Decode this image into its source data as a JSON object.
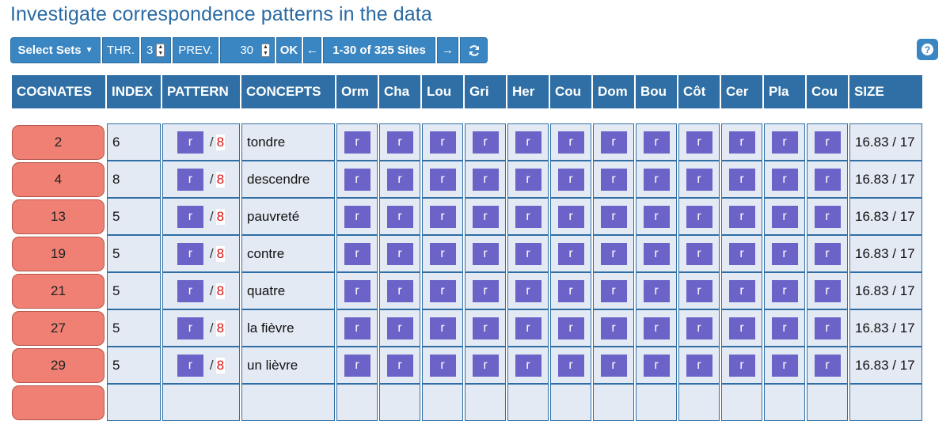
{
  "page": {
    "title": "Investigate correspondence patterns in the data"
  },
  "toolbar": {
    "select_sets": "Select Sets",
    "thr_label": "THR.",
    "thr_value": "3",
    "prev_label": "PREV.",
    "prev_value": "30",
    "ok": "OK",
    "back": "←",
    "range": "1-30 of 325 Sites",
    "forward": "→",
    "refresh_icon": "refresh-icon",
    "help": "?"
  },
  "table": {
    "headers": [
      "COGNATES",
      "INDEX",
      "PATTERN",
      "CONCEPTS",
      "Orm",
      "Cha",
      "Lou",
      "Gri",
      "Her",
      "Cou",
      "Dom",
      "Bou",
      "Côt",
      "Cer",
      "Pla",
      "Cou",
      "SIZE"
    ],
    "rows": [
      {
        "cognates": "2",
        "index": "6",
        "pattern": "r",
        "pattern_count": "8",
        "concept": "tondre",
        "sites": [
          "r",
          "r",
          "r",
          "r",
          "r",
          "r",
          "r",
          "r",
          "r",
          "r",
          "r",
          "r"
        ],
        "size": "16.83 / 17"
      },
      {
        "cognates": "4",
        "index": "8",
        "pattern": "r",
        "pattern_count": "8",
        "concept": "descendre",
        "sites": [
          "r",
          "r",
          "r",
          "r",
          "r",
          "r",
          "r",
          "r",
          "r",
          "r",
          "r",
          "r"
        ],
        "size": "16.83 / 17"
      },
      {
        "cognates": "13",
        "index": "5",
        "pattern": "r",
        "pattern_count": "8",
        "concept": "pauvreté",
        "sites": [
          "r",
          "r",
          "r",
          "r",
          "r",
          "r",
          "r",
          "r",
          "r",
          "r",
          "r",
          "r"
        ],
        "size": "16.83 / 17"
      },
      {
        "cognates": "19",
        "index": "5",
        "pattern": "r",
        "pattern_count": "8",
        "concept": "contre",
        "sites": [
          "r",
          "r",
          "r",
          "r",
          "r",
          "r",
          "r",
          "r",
          "r",
          "r",
          "r",
          "r"
        ],
        "size": "16.83 / 17"
      },
      {
        "cognates": "21",
        "index": "5",
        "pattern": "r",
        "pattern_count": "8",
        "concept": "quatre",
        "sites": [
          "r",
          "r",
          "r",
          "r",
          "r",
          "r",
          "r",
          "r",
          "r",
          "r",
          "r",
          "r"
        ],
        "size": "16.83 / 17"
      },
      {
        "cognates": "27",
        "index": "5",
        "pattern": "r",
        "pattern_count": "8",
        "concept": "la fièvre",
        "sites": [
          "r",
          "r",
          "r",
          "r",
          "r",
          "r",
          "r",
          "r",
          "r",
          "r",
          "r",
          "r"
        ],
        "size": "16.83 / 17"
      },
      {
        "cognates": "29",
        "index": "5",
        "pattern": "r",
        "pattern_count": "8",
        "concept": "un lièvre",
        "sites": [
          "r",
          "r",
          "r",
          "r",
          "r",
          "r",
          "r",
          "r",
          "r",
          "r",
          "r",
          "r"
        ],
        "size": "16.83 / 17"
      }
    ]
  },
  "colors": {
    "header_bg": "#2f6fa5",
    "button_bg": "#3a86c3",
    "cognate_bg": "#f08073",
    "sound_box": "#6b63c8",
    "cell_bg": "#e4eaf4",
    "count_red": "#e01010"
  }
}
